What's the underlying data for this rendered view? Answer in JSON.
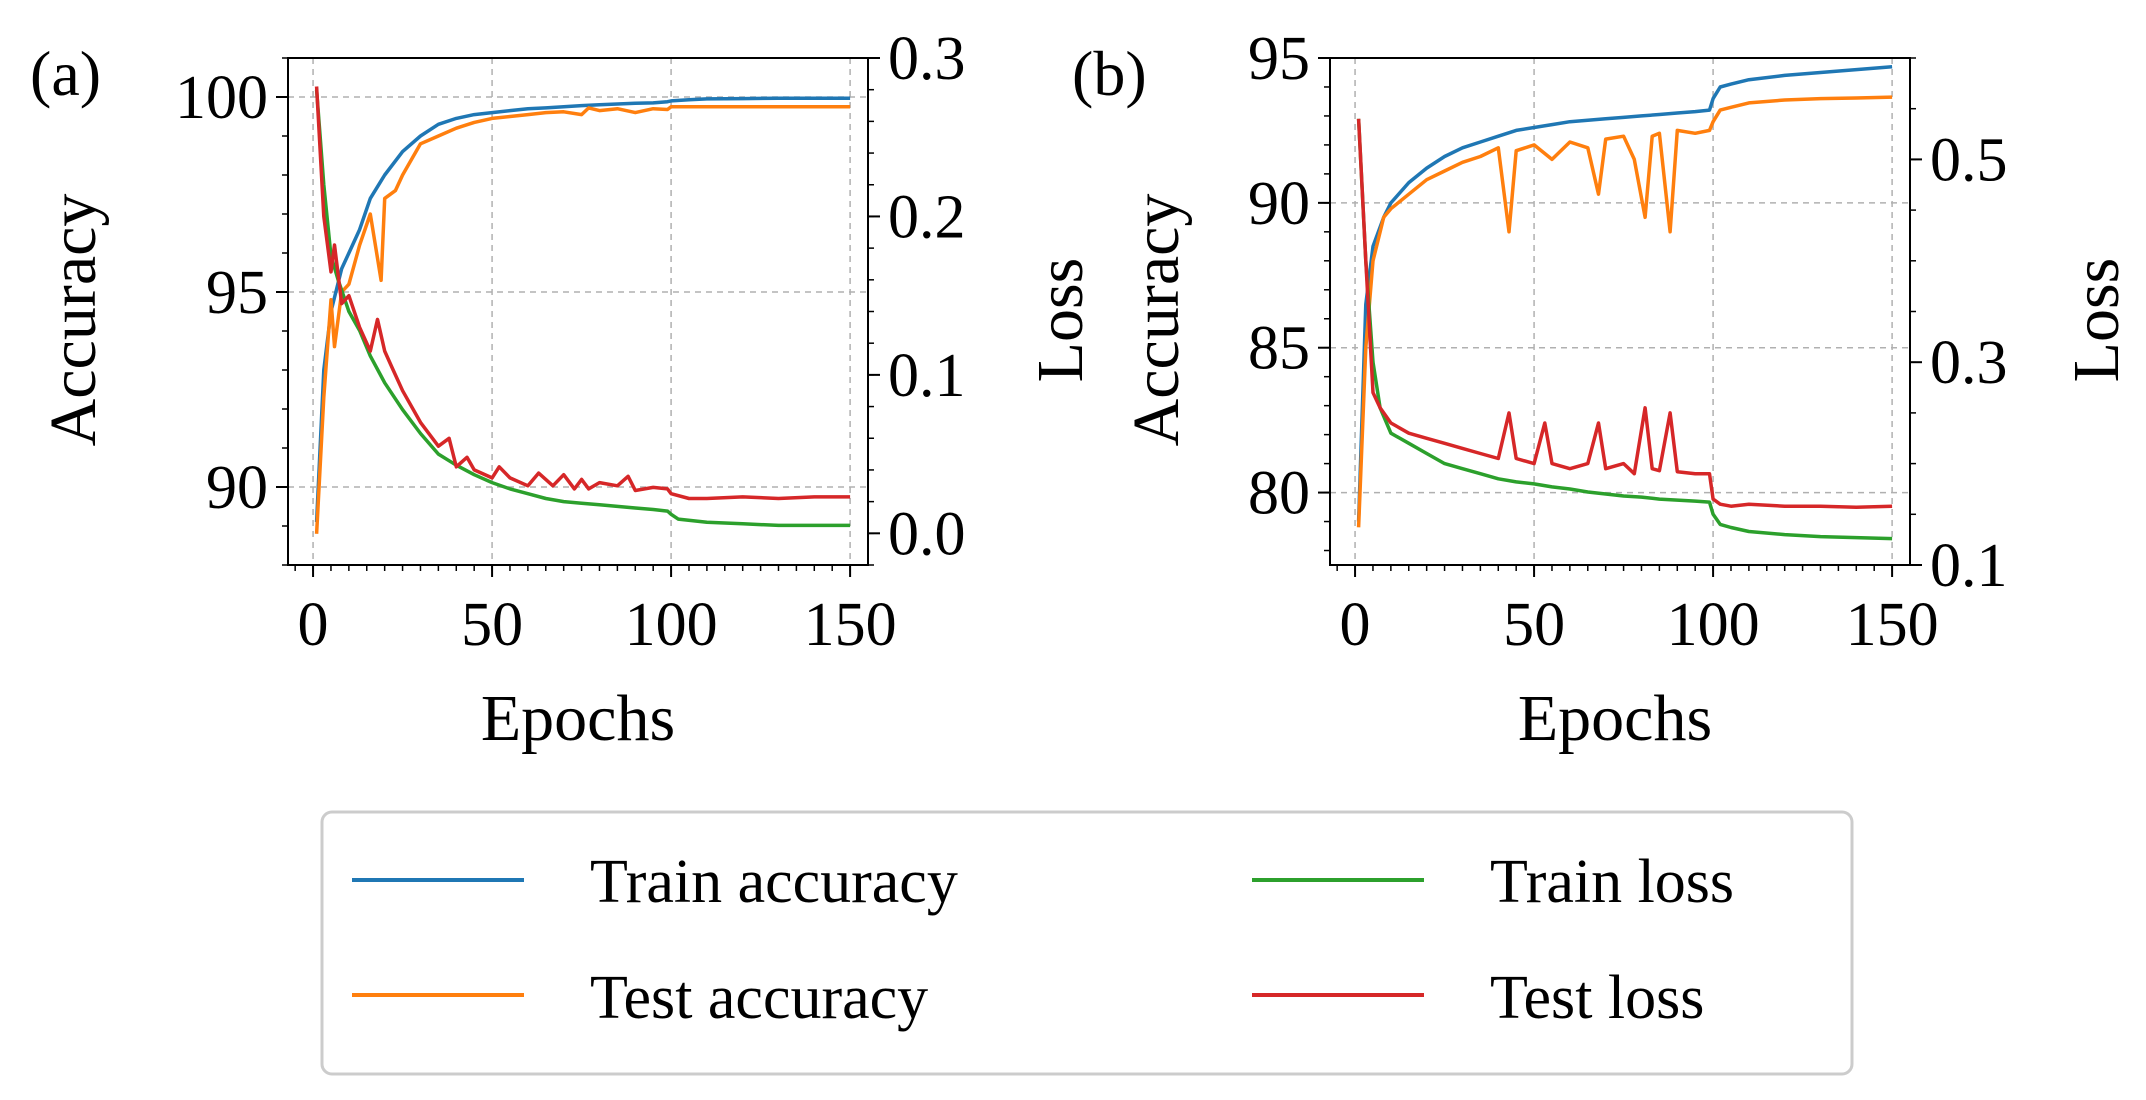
{
  "figure": {
    "legend": [
      {
        "label": "Train accuracy",
        "series": "train_acc"
      },
      {
        "label": "Train loss",
        "series": "train_loss"
      },
      {
        "label": "Test accuracy",
        "series": "test_acc"
      },
      {
        "label": "Test loss",
        "series": "test_loss"
      }
    ]
  },
  "colors": {
    "train_acc": "#1f77b4",
    "test_acc": "#ff7f0e",
    "train_loss": "#2ca02c",
    "test_loss": "#d62728"
  },
  "chart_data": [
    {
      "type": "line",
      "panel": "(a)",
      "xlabel": "Epochs",
      "ylabel": "Accuracy",
      "y2label": "Loss",
      "xlim": [
        -7,
        155
      ],
      "ylim": [
        88,
        101
      ],
      "y2lim": [
        -0.02,
        0.3
      ],
      "xticks": [
        0,
        50,
        100,
        150
      ],
      "yticks": [
        90,
        95,
        100
      ],
      "y2ticks": [
        0.0,
        0.1,
        0.2,
        0.3
      ],
      "y2tick_labels": [
        "0.0",
        "0.1",
        "0.2",
        "0.3"
      ],
      "grid": true,
      "legend": "bottom-center",
      "series": [
        {
          "key": "train_acc",
          "name": "Train accuracy",
          "axis": "left",
          "x": [
            1,
            3,
            5,
            8,
            10,
            13,
            16,
            20,
            25,
            30,
            35,
            40,
            45,
            50,
            55,
            60,
            65,
            70,
            75,
            80,
            85,
            90,
            95,
            99,
            100,
            105,
            110,
            120,
            130,
            140,
            150
          ],
          "y": [
            89.1,
            93.0,
            94.5,
            95.6,
            96.0,
            96.6,
            97.4,
            98.0,
            98.6,
            99.0,
            99.3,
            99.45,
            99.55,
            99.6,
            99.65,
            99.7,
            99.72,
            99.75,
            99.78,
            99.8,
            99.82,
            99.84,
            99.85,
            99.88,
            99.9,
            99.93,
            99.95,
            99.96,
            99.97,
            99.97,
            99.97
          ]
        },
        {
          "key": "test_acc",
          "name": "Test accuracy",
          "axis": "left",
          "x": [
            1,
            3,
            5,
            6,
            8,
            10,
            13,
            16,
            19,
            20,
            23,
            25,
            30,
            35,
            40,
            45,
            50,
            55,
            60,
            65,
            70,
            75,
            77,
            80,
            85,
            90,
            95,
            99,
            100,
            105,
            110,
            120,
            130,
            140,
            150
          ],
          "y": [
            88.8,
            92.3,
            94.8,
            93.6,
            95.0,
            95.2,
            96.2,
            97.0,
            95.3,
            97.4,
            97.6,
            98.0,
            98.8,
            99.0,
            99.2,
            99.35,
            99.45,
            99.5,
            99.55,
            99.6,
            99.62,
            99.55,
            99.72,
            99.65,
            99.7,
            99.6,
            99.7,
            99.68,
            99.75,
            99.75,
            99.75,
            99.75,
            99.75,
            99.75,
            99.75
          ]
        },
        {
          "key": "train_loss",
          "name": "Train loss",
          "axis": "right",
          "x": [
            1,
            3,
            5,
            7,
            10,
            13,
            16,
            20,
            25,
            30,
            35,
            40,
            45,
            50,
            55,
            60,
            65,
            70,
            75,
            80,
            85,
            90,
            95,
            99,
            100,
            102,
            110,
            120,
            130,
            140,
            150
          ],
          "y": [
            0.28,
            0.22,
            0.175,
            0.16,
            0.14,
            0.128,
            0.112,
            0.095,
            0.078,
            0.063,
            0.05,
            0.043,
            0.037,
            0.032,
            0.028,
            0.025,
            0.022,
            0.02,
            0.019,
            0.018,
            0.017,
            0.016,
            0.015,
            0.014,
            0.012,
            0.009,
            0.007,
            0.006,
            0.005,
            0.005,
            0.005
          ]
        },
        {
          "key": "test_loss",
          "name": "Test loss",
          "axis": "right",
          "x": [
            1,
            3,
            5,
            6,
            8,
            10,
            13,
            16,
            18,
            20,
            22,
            25,
            30,
            35,
            38,
            40,
            43,
            45,
            50,
            52,
            55,
            60,
            63,
            67,
            70,
            73,
            75,
            77,
            80,
            85,
            88,
            90,
            95,
            99,
            100,
            105,
            110,
            120,
            130,
            140,
            150
          ],
          "y": [
            0.282,
            0.2,
            0.165,
            0.182,
            0.145,
            0.15,
            0.13,
            0.115,
            0.135,
            0.115,
            0.105,
            0.09,
            0.07,
            0.055,
            0.06,
            0.042,
            0.048,
            0.04,
            0.035,
            0.042,
            0.035,
            0.03,
            0.038,
            0.03,
            0.037,
            0.028,
            0.034,
            0.028,
            0.032,
            0.03,
            0.036,
            0.027,
            0.029,
            0.028,
            0.025,
            0.022,
            0.022,
            0.023,
            0.022,
            0.023,
            0.023
          ]
        }
      ]
    },
    {
      "type": "line",
      "panel": "(b)",
      "xlabel": "Epochs",
      "ylabel": "Accuracy",
      "y2label": "Loss",
      "xlim": [
        -7,
        155
      ],
      "ylim": [
        77.5,
        95
      ],
      "y2lim": [
        0.1,
        0.6
      ],
      "xticks": [
        0,
        50,
        100,
        150
      ],
      "yticks": [
        80,
        85,
        90,
        95
      ],
      "y2ticks": [
        0.1,
        0.3,
        0.5
      ],
      "y2tick_labels": [
        "0.1",
        "0.3",
        "0.5"
      ],
      "grid": true,
      "legend": "bottom-center",
      "series": [
        {
          "key": "train_acc",
          "name": "Train accuracy",
          "axis": "left",
          "x": [
            1,
            3,
            5,
            8,
            10,
            15,
            20,
            25,
            30,
            35,
            40,
            45,
            50,
            55,
            60,
            65,
            70,
            75,
            80,
            85,
            90,
            95,
            99,
            100,
            102,
            105,
            110,
            120,
            130,
            140,
            150
          ],
          "y": [
            79.0,
            86.5,
            88.5,
            89.5,
            90.0,
            90.7,
            91.2,
            91.6,
            91.9,
            92.1,
            92.3,
            92.5,
            92.6,
            92.7,
            92.8,
            92.85,
            92.9,
            92.95,
            93.0,
            93.05,
            93.1,
            93.15,
            93.2,
            93.6,
            94.0,
            94.1,
            94.25,
            94.4,
            94.5,
            94.6,
            94.7
          ]
        },
        {
          "key": "test_acc",
          "name": "Test accuracy",
          "axis": "left",
          "x": [
            1,
            3,
            5,
            8,
            10,
            15,
            20,
            25,
            30,
            35,
            40,
            43,
            45,
            50,
            55,
            60,
            65,
            68,
            70,
            75,
            78,
            81,
            83,
            85,
            88,
            90,
            95,
            99,
            100,
            102,
            105,
            110,
            120,
            130,
            140,
            150
          ],
          "y": [
            78.8,
            85.0,
            88.0,
            89.5,
            89.8,
            90.3,
            90.8,
            91.1,
            91.4,
            91.6,
            91.9,
            89.0,
            91.8,
            92.0,
            91.5,
            92.1,
            91.9,
            90.3,
            92.2,
            92.3,
            91.5,
            89.5,
            92.3,
            92.4,
            89.0,
            92.5,
            92.4,
            92.5,
            92.8,
            93.2,
            93.3,
            93.45,
            93.55,
            93.6,
            93.62,
            93.65
          ]
        },
        {
          "key": "train_loss",
          "name": "Train loss",
          "axis": "right",
          "x": [
            1,
            3,
            5,
            7,
            10,
            15,
            20,
            25,
            30,
            35,
            40,
            45,
            50,
            55,
            60,
            65,
            70,
            75,
            80,
            85,
            90,
            95,
            99,
            100,
            102,
            105,
            110,
            120,
            130,
            140,
            150
          ],
          "y": [
            0.54,
            0.4,
            0.3,
            0.255,
            0.23,
            0.22,
            0.21,
            0.2,
            0.195,
            0.19,
            0.185,
            0.182,
            0.18,
            0.177,
            0.175,
            0.172,
            0.17,
            0.168,
            0.167,
            0.165,
            0.164,
            0.163,
            0.162,
            0.15,
            0.14,
            0.137,
            0.133,
            0.13,
            0.128,
            0.127,
            0.126
          ]
        },
        {
          "key": "test_loss",
          "name": "Test loss",
          "axis": "right",
          "x": [
            1,
            3,
            5,
            7,
            10,
            15,
            20,
            25,
            30,
            35,
            40,
            43,
            45,
            50,
            53,
            55,
            60,
            65,
            68,
            70,
            75,
            78,
            81,
            83,
            85,
            88,
            90,
            95,
            99,
            100,
            102,
            105,
            110,
            120,
            130,
            140,
            150
          ],
          "y": [
            0.54,
            0.4,
            0.27,
            0.255,
            0.24,
            0.23,
            0.225,
            0.22,
            0.215,
            0.21,
            0.205,
            0.25,
            0.205,
            0.2,
            0.24,
            0.2,
            0.195,
            0.2,
            0.24,
            0.195,
            0.2,
            0.19,
            0.255,
            0.195,
            0.193,
            0.25,
            0.192,
            0.19,
            0.19,
            0.165,
            0.16,
            0.158,
            0.16,
            0.158,
            0.158,
            0.157,
            0.158
          ]
        }
      ]
    }
  ]
}
